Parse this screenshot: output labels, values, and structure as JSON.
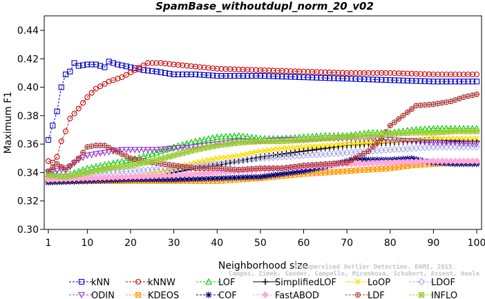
{
  "chart_data": {
    "type": "line",
    "title": "SpamBase_withoutdupl_norm_20_v02",
    "xlabel": "Neighborhood size",
    "ylabel": "Maximum F1",
    "xlim": [
      1,
      100
    ],
    "ylim": [
      0.3,
      0.445
    ],
    "x_ticks": [
      1,
      10,
      20,
      30,
      40,
      50,
      60,
      70,
      80,
      90,
      100
    ],
    "y_ticks": [
      0.3,
      0.32,
      0.34,
      0.36,
      0.38,
      0.4,
      0.42,
      0.44
    ],
    "grid": false,
    "legend_position": "bottom",
    "credit_lines": [
      "Campos, Zimek, Sander, Campello, Micenkova, Schubert, Assent, Houle",
      "Unsupervised Outlier Detection. DAMI, 2015."
    ],
    "series": [
      {
        "name": "kNN",
        "color": "#0000cc",
        "marker": "square",
        "dashed": true,
        "points": [
          [
            1,
            0.363
          ],
          [
            3,
            0.383
          ],
          [
            4,
            0.4
          ],
          [
            5,
            0.409
          ],
          [
            6,
            0.411
          ],
          [
            7,
            0.417
          ],
          [
            8,
            0.415
          ],
          [
            10,
            0.416
          ],
          [
            12,
            0.416
          ],
          [
            14,
            0.414
          ],
          [
            15,
            0.418
          ],
          [
            17,
            0.416
          ],
          [
            20,
            0.414
          ],
          [
            23,
            0.412
          ],
          [
            26,
            0.411
          ],
          [
            30,
            0.409
          ],
          [
            35,
            0.409
          ],
          [
            40,
            0.408
          ],
          [
            50,
            0.408
          ],
          [
            60,
            0.407
          ],
          [
            70,
            0.406
          ],
          [
            80,
            0.405
          ],
          [
            90,
            0.404
          ],
          [
            100,
            0.404
          ]
        ]
      },
      {
        "name": "kNNW",
        "color": "#cc0000",
        "marker": "circle",
        "dashed": true,
        "points": [
          [
            1,
            0.348
          ],
          [
            2,
            0.347
          ],
          [
            3,
            0.351
          ],
          [
            4,
            0.362
          ],
          [
            5,
            0.369
          ],
          [
            6,
            0.378
          ],
          [
            8,
            0.385
          ],
          [
            10,
            0.393
          ],
          [
            12,
            0.399
          ],
          [
            15,
            0.404
          ],
          [
            18,
            0.407
          ],
          [
            21,
            0.412
          ],
          [
            24,
            0.417
          ],
          [
            27,
            0.417
          ],
          [
            30,
            0.416
          ],
          [
            40,
            0.413
          ],
          [
            50,
            0.412
          ],
          [
            60,
            0.411
          ],
          [
            70,
            0.41
          ],
          [
            80,
            0.41
          ],
          [
            90,
            0.409
          ],
          [
            100,
            0.409
          ]
        ]
      },
      {
        "name": "LOF",
        "color": "#00cc00",
        "marker": "triangle-up",
        "dashed": true,
        "points": [
          [
            1,
            0.339
          ],
          [
            5,
            0.338
          ],
          [
            10,
            0.343
          ],
          [
            15,
            0.346
          ],
          [
            20,
            0.349
          ],
          [
            25,
            0.353
          ],
          [
            30,
            0.358
          ],
          [
            35,
            0.362
          ],
          [
            40,
            0.365
          ],
          [
            45,
            0.366
          ],
          [
            50,
            0.364
          ],
          [
            55,
            0.364
          ],
          [
            60,
            0.365
          ],
          [
            65,
            0.366
          ],
          [
            70,
            0.366
          ],
          [
            75,
            0.368
          ],
          [
            80,
            0.368
          ],
          [
            85,
            0.37
          ],
          [
            90,
            0.371
          ],
          [
            95,
            0.371
          ],
          [
            100,
            0.371
          ]
        ]
      },
      {
        "name": "SimplifiedLOF",
        "color": "#000000",
        "marker": "plus",
        "dashed": false,
        "points": [
          [
            1,
            0.334
          ],
          [
            10,
            0.334
          ],
          [
            20,
            0.335
          ],
          [
            25,
            0.337
          ],
          [
            30,
            0.34
          ],
          [
            35,
            0.343
          ],
          [
            40,
            0.345
          ],
          [
            45,
            0.348
          ],
          [
            50,
            0.351
          ],
          [
            55,
            0.353
          ],
          [
            60,
            0.355
          ],
          [
            65,
            0.357
          ],
          [
            70,
            0.359
          ],
          [
            75,
            0.36
          ],
          [
            80,
            0.361
          ],
          [
            85,
            0.362
          ],
          [
            90,
            0.363
          ],
          [
            95,
            0.362
          ],
          [
            100,
            0.362
          ]
        ]
      },
      {
        "name": "LoOP",
        "color": "#ffdd00",
        "marker": "cross",
        "dashed": false,
        "points": [
          [
            1,
            0.333
          ],
          [
            10,
            0.334
          ],
          [
            20,
            0.336
          ],
          [
            25,
            0.339
          ],
          [
            30,
            0.343
          ],
          [
            35,
            0.347
          ],
          [
            40,
            0.35
          ],
          [
            45,
            0.352
          ],
          [
            50,
            0.355
          ],
          [
            55,
            0.357
          ],
          [
            60,
            0.358
          ],
          [
            65,
            0.359
          ],
          [
            70,
            0.36
          ],
          [
            75,
            0.361
          ],
          [
            80,
            0.362
          ],
          [
            85,
            0.363
          ],
          [
            90,
            0.364
          ],
          [
            95,
            0.364
          ],
          [
            100,
            0.364
          ]
        ]
      },
      {
        "name": "LDOF",
        "color": "#aaaaee",
        "marker": "diamond",
        "dashed": true,
        "points": [
          [
            1,
            0.337
          ],
          [
            10,
            0.339
          ],
          [
            20,
            0.341
          ],
          [
            30,
            0.343
          ],
          [
            40,
            0.346
          ],
          [
            50,
            0.35
          ],
          [
            60,
            0.352
          ],
          [
            70,
            0.354
          ],
          [
            80,
            0.356
          ],
          [
            90,
            0.358
          ],
          [
            100,
            0.358
          ]
        ]
      },
      {
        "name": "ODIN",
        "color": "#9933cc",
        "marker": "triangle-down",
        "dashed": true,
        "points": [
          [
            1,
            0.34
          ],
          [
            4,
            0.342
          ],
          [
            6,
            0.344
          ],
          [
            8,
            0.349
          ],
          [
            10,
            0.352
          ],
          [
            14,
            0.354
          ],
          [
            18,
            0.356
          ],
          [
            22,
            0.356
          ],
          [
            26,
            0.356
          ],
          [
            30,
            0.357
          ],
          [
            35,
            0.358
          ],
          [
            40,
            0.36
          ],
          [
            45,
            0.362
          ],
          [
            50,
            0.362
          ],
          [
            55,
            0.363
          ],
          [
            60,
            0.363
          ],
          [
            65,
            0.364
          ],
          [
            70,
            0.364
          ],
          [
            75,
            0.364
          ],
          [
            80,
            0.363
          ],
          [
            85,
            0.362
          ],
          [
            90,
            0.361
          ],
          [
            95,
            0.361
          ],
          [
            100,
            0.36
          ]
        ]
      },
      {
        "name": "KDEOS",
        "color": "#ff9900",
        "marker": "square-x",
        "dashed": true,
        "points": [
          [
            1,
            0.334
          ],
          [
            10,
            0.334
          ],
          [
            20,
            0.334
          ],
          [
            30,
            0.334
          ],
          [
            40,
            0.334
          ],
          [
            50,
            0.336
          ],
          [
            60,
            0.339
          ],
          [
            70,
            0.341
          ],
          [
            80,
            0.343
          ],
          [
            85,
            0.345
          ],
          [
            90,
            0.346
          ],
          [
            95,
            0.347
          ],
          [
            100,
            0.347
          ]
        ]
      },
      {
        "name": "COF",
        "color": "#000080",
        "marker": "star",
        "dashed": true,
        "points": [
          [
            1,
            0.333
          ],
          [
            10,
            0.334
          ],
          [
            20,
            0.335
          ],
          [
            30,
            0.335
          ],
          [
            40,
            0.336
          ],
          [
            50,
            0.337
          ],
          [
            55,
            0.339
          ],
          [
            60,
            0.341
          ],
          [
            65,
            0.344
          ],
          [
            70,
            0.348
          ],
          [
            72,
            0.35
          ],
          [
            75,
            0.349
          ],
          [
            80,
            0.349
          ],
          [
            85,
            0.35
          ],
          [
            88,
            0.348
          ],
          [
            90,
            0.347
          ],
          [
            95,
            0.346
          ],
          [
            100,
            0.346
          ]
        ]
      },
      {
        "name": "FastABOD",
        "color": "#ffaadd",
        "marker": "diamond-filled",
        "dashed": true,
        "points": [
          [
            1,
            0.335
          ],
          [
            10,
            0.336
          ],
          [
            20,
            0.337
          ],
          [
            30,
            0.338
          ],
          [
            40,
            0.34
          ],
          [
            50,
            0.342
          ],
          [
            60,
            0.344
          ],
          [
            70,
            0.346
          ],
          [
            80,
            0.347
          ],
          [
            90,
            0.348
          ],
          [
            100,
            0.348
          ]
        ]
      },
      {
        "name": "LDF",
        "color": "#aa3333",
        "marker": "circle-plus",
        "dashed": true,
        "points": [
          [
            1,
            0.341
          ],
          [
            3,
            0.346
          ],
          [
            5,
            0.342
          ],
          [
            8,
            0.35
          ],
          [
            10,
            0.358
          ],
          [
            12,
            0.359
          ],
          [
            14,
            0.359
          ],
          [
            16,
            0.356
          ],
          [
            18,
            0.353
          ],
          [
            20,
            0.35
          ],
          [
            25,
            0.347
          ],
          [
            30,
            0.345
          ],
          [
            35,
            0.343
          ],
          [
            40,
            0.343
          ],
          [
            45,
            0.342
          ],
          [
            50,
            0.343
          ],
          [
            55,
            0.343
          ],
          [
            60,
            0.345
          ],
          [
            65,
            0.346
          ],
          [
            70,
            0.347
          ],
          [
            75,
            0.355
          ],
          [
            78,
            0.364
          ],
          [
            80,
            0.373
          ],
          [
            83,
            0.38
          ],
          [
            86,
            0.387
          ],
          [
            90,
            0.388
          ],
          [
            94,
            0.39
          ],
          [
            97,
            0.393
          ],
          [
            100,
            0.395
          ]
        ]
      },
      {
        "name": "INFLO",
        "color": "#99cc33",
        "marker": "square-star",
        "dashed": true,
        "points": [
          [
            1,
            0.338
          ],
          [
            5,
            0.337
          ],
          [
            10,
            0.34
          ],
          [
            15,
            0.343
          ],
          [
            20,
            0.345
          ],
          [
            25,
            0.348
          ],
          [
            30,
            0.352
          ],
          [
            35,
            0.356
          ],
          [
            40,
            0.359
          ],
          [
            45,
            0.361
          ],
          [
            50,
            0.362
          ],
          [
            55,
            0.362
          ],
          [
            60,
            0.363
          ],
          [
            65,
            0.364
          ],
          [
            70,
            0.365
          ],
          [
            75,
            0.366
          ],
          [
            80,
            0.367
          ],
          [
            85,
            0.368
          ],
          [
            90,
            0.368
          ],
          [
            95,
            0.369
          ],
          [
            100,
            0.369
          ]
        ]
      }
    ]
  }
}
